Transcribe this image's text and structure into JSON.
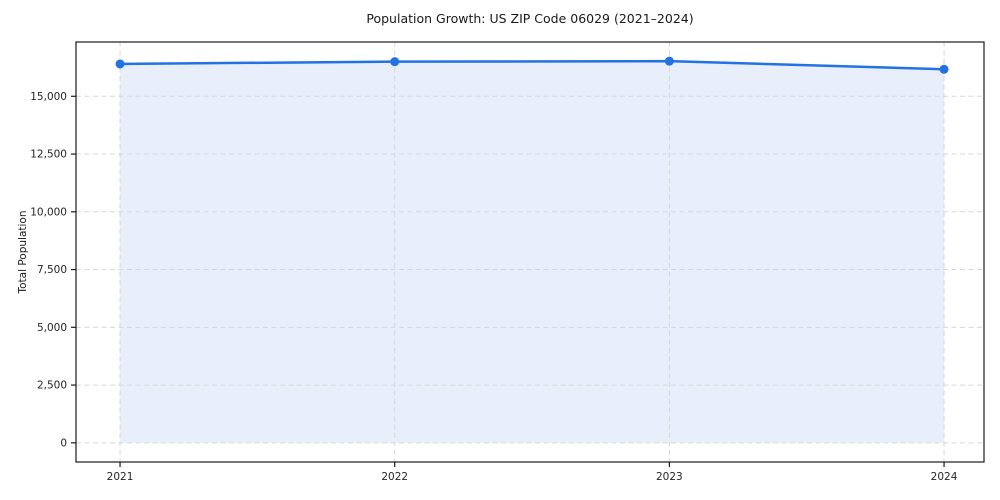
{
  "chart_data": {
    "type": "area",
    "title": "Population Growth: US ZIP Code 06029 (2021–2024)",
    "xlabel": "",
    "ylabel": "Total Population",
    "categories": [
      "2021",
      "2022",
      "2023",
      "2024"
    ],
    "series": [
      {
        "name": "Total Population",
        "values": [
          16400,
          16500,
          16520,
          16170
        ]
      }
    ],
    "ylim": [
      -830,
      17350
    ],
    "yticks": [
      0,
      2500,
      5000,
      7500,
      10000,
      12500,
      15000
    ],
    "ytick_labels": [
      "0",
      "2,500",
      "5,000",
      "7,500",
      "10,000",
      "12,500",
      "15,000"
    ],
    "grid": true,
    "grid_style": "dashed",
    "legend": "none",
    "marker": "circle",
    "colors": {
      "line": "#2272e3",
      "marker": "#2272e3",
      "fill": "#e8effb",
      "grid": "#d7d7d7",
      "spine": "#1a1a1a",
      "text": "#262626",
      "background": "#ffffff"
    }
  }
}
